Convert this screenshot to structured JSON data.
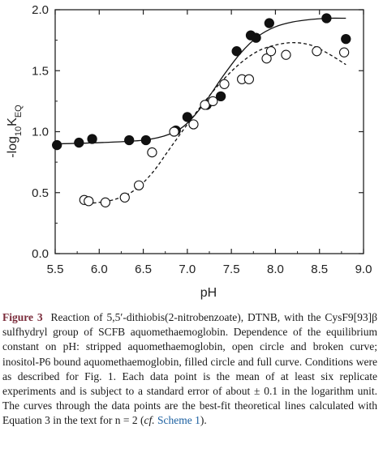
{
  "chart_data": {
    "type": "scatter",
    "xlabel": "pH",
    "ylabel": "-log10KEQ",
    "xlim": [
      5.5,
      9.0
    ],
    "ylim": [
      0.0,
      2.0
    ],
    "x_ticks": [
      5.5,
      6.0,
      6.5,
      7.0,
      7.5,
      8.0,
      8.5,
      9.0
    ],
    "y_ticks": [
      0.0,
      0.5,
      1.0,
      1.5,
      2.0
    ],
    "x_tick_labels": [
      "5.5",
      "6.0",
      "6.5",
      "7.0",
      "7.5",
      "8.0",
      "8.5",
      "9.0"
    ],
    "y_tick_labels": [
      "0.0",
      "0.5",
      "1.0",
      "1.5",
      "2.0"
    ],
    "grid": false,
    "series": [
      {
        "marker": "filled-circle",
        "line": "solid",
        "x": [
          5.52,
          5.77,
          5.92,
          6.34,
          6.53,
          6.87,
          7.0,
          7.22,
          7.38,
          7.56,
          7.72,
          7.78,
          7.93,
          8.58,
          8.8
        ],
        "y": [
          0.89,
          0.91,
          0.94,
          0.93,
          0.93,
          1.01,
          1.12,
          1.22,
          1.29,
          1.66,
          1.79,
          1.77,
          1.89,
          1.93,
          1.76
        ]
      },
      {
        "marker": "open-circle",
        "line": "dashed",
        "x": [
          5.83,
          5.88,
          6.07,
          6.29,
          6.45,
          6.6,
          6.85,
          7.07,
          7.2,
          7.29,
          7.42,
          7.62,
          7.7,
          7.9,
          7.95,
          8.12,
          8.47,
          8.78
        ],
        "y": [
          0.44,
          0.43,
          0.42,
          0.46,
          0.56,
          0.83,
          1.0,
          1.06,
          1.22,
          1.25,
          1.39,
          1.43,
          1.43,
          1.6,
          1.66,
          1.63,
          1.66,
          1.65
        ]
      }
    ],
    "fit_curves": [
      {
        "line": "solid",
        "x": [
          5.5,
          6.0,
          6.5,
          6.8,
          7.0,
          7.2,
          7.4,
          7.6,
          7.8,
          8.0,
          8.2,
          8.4,
          8.6,
          8.8
        ],
        "y": [
          0.9,
          0.91,
          0.93,
          0.98,
          1.07,
          1.24,
          1.45,
          1.64,
          1.78,
          1.86,
          1.9,
          1.92,
          1.93,
          1.93
        ]
      },
      {
        "line": "dashed",
        "x": [
          5.8,
          6.0,
          6.2,
          6.4,
          6.6,
          6.8,
          7.0,
          7.2,
          7.4,
          7.6,
          7.8,
          8.0,
          8.2,
          8.4,
          8.6,
          8.8
        ],
        "y": [
          0.41,
          0.42,
          0.45,
          0.52,
          0.66,
          0.86,
          1.06,
          1.25,
          1.42,
          1.56,
          1.66,
          1.71,
          1.73,
          1.71,
          1.64,
          1.55
        ]
      }
    ]
  },
  "caption": {
    "label": "Figure 3",
    "text": "Reaction of 5,5′-dithiobis(2-nitrobenzoate), DTNB, with the CysF9[93]β sulfhydryl group of SCFB aquomethaemoglobin. Dependence of the equilibrium constant on pH: stripped aquomethaemoglobin, open circle and broken curve; inositol-P6 bound aquomethaemoglobin, filled circle and full curve. Conditions were as described for Fig. 1. Each data point is the mean of at least six replicate experiments and is subject to a standard error of about ± 0.1 in the logarithm unit. The curves through the data points are the best-fit theoretical lines calculated with Equation 3 in the text for n = 2 (",
    "cf": "cf.",
    "link": "Scheme 1",
    "end": ")."
  },
  "colors": {
    "axis": "#222222",
    "caption_label": "#7a2b3a",
    "link": "#1a5fa0"
  }
}
